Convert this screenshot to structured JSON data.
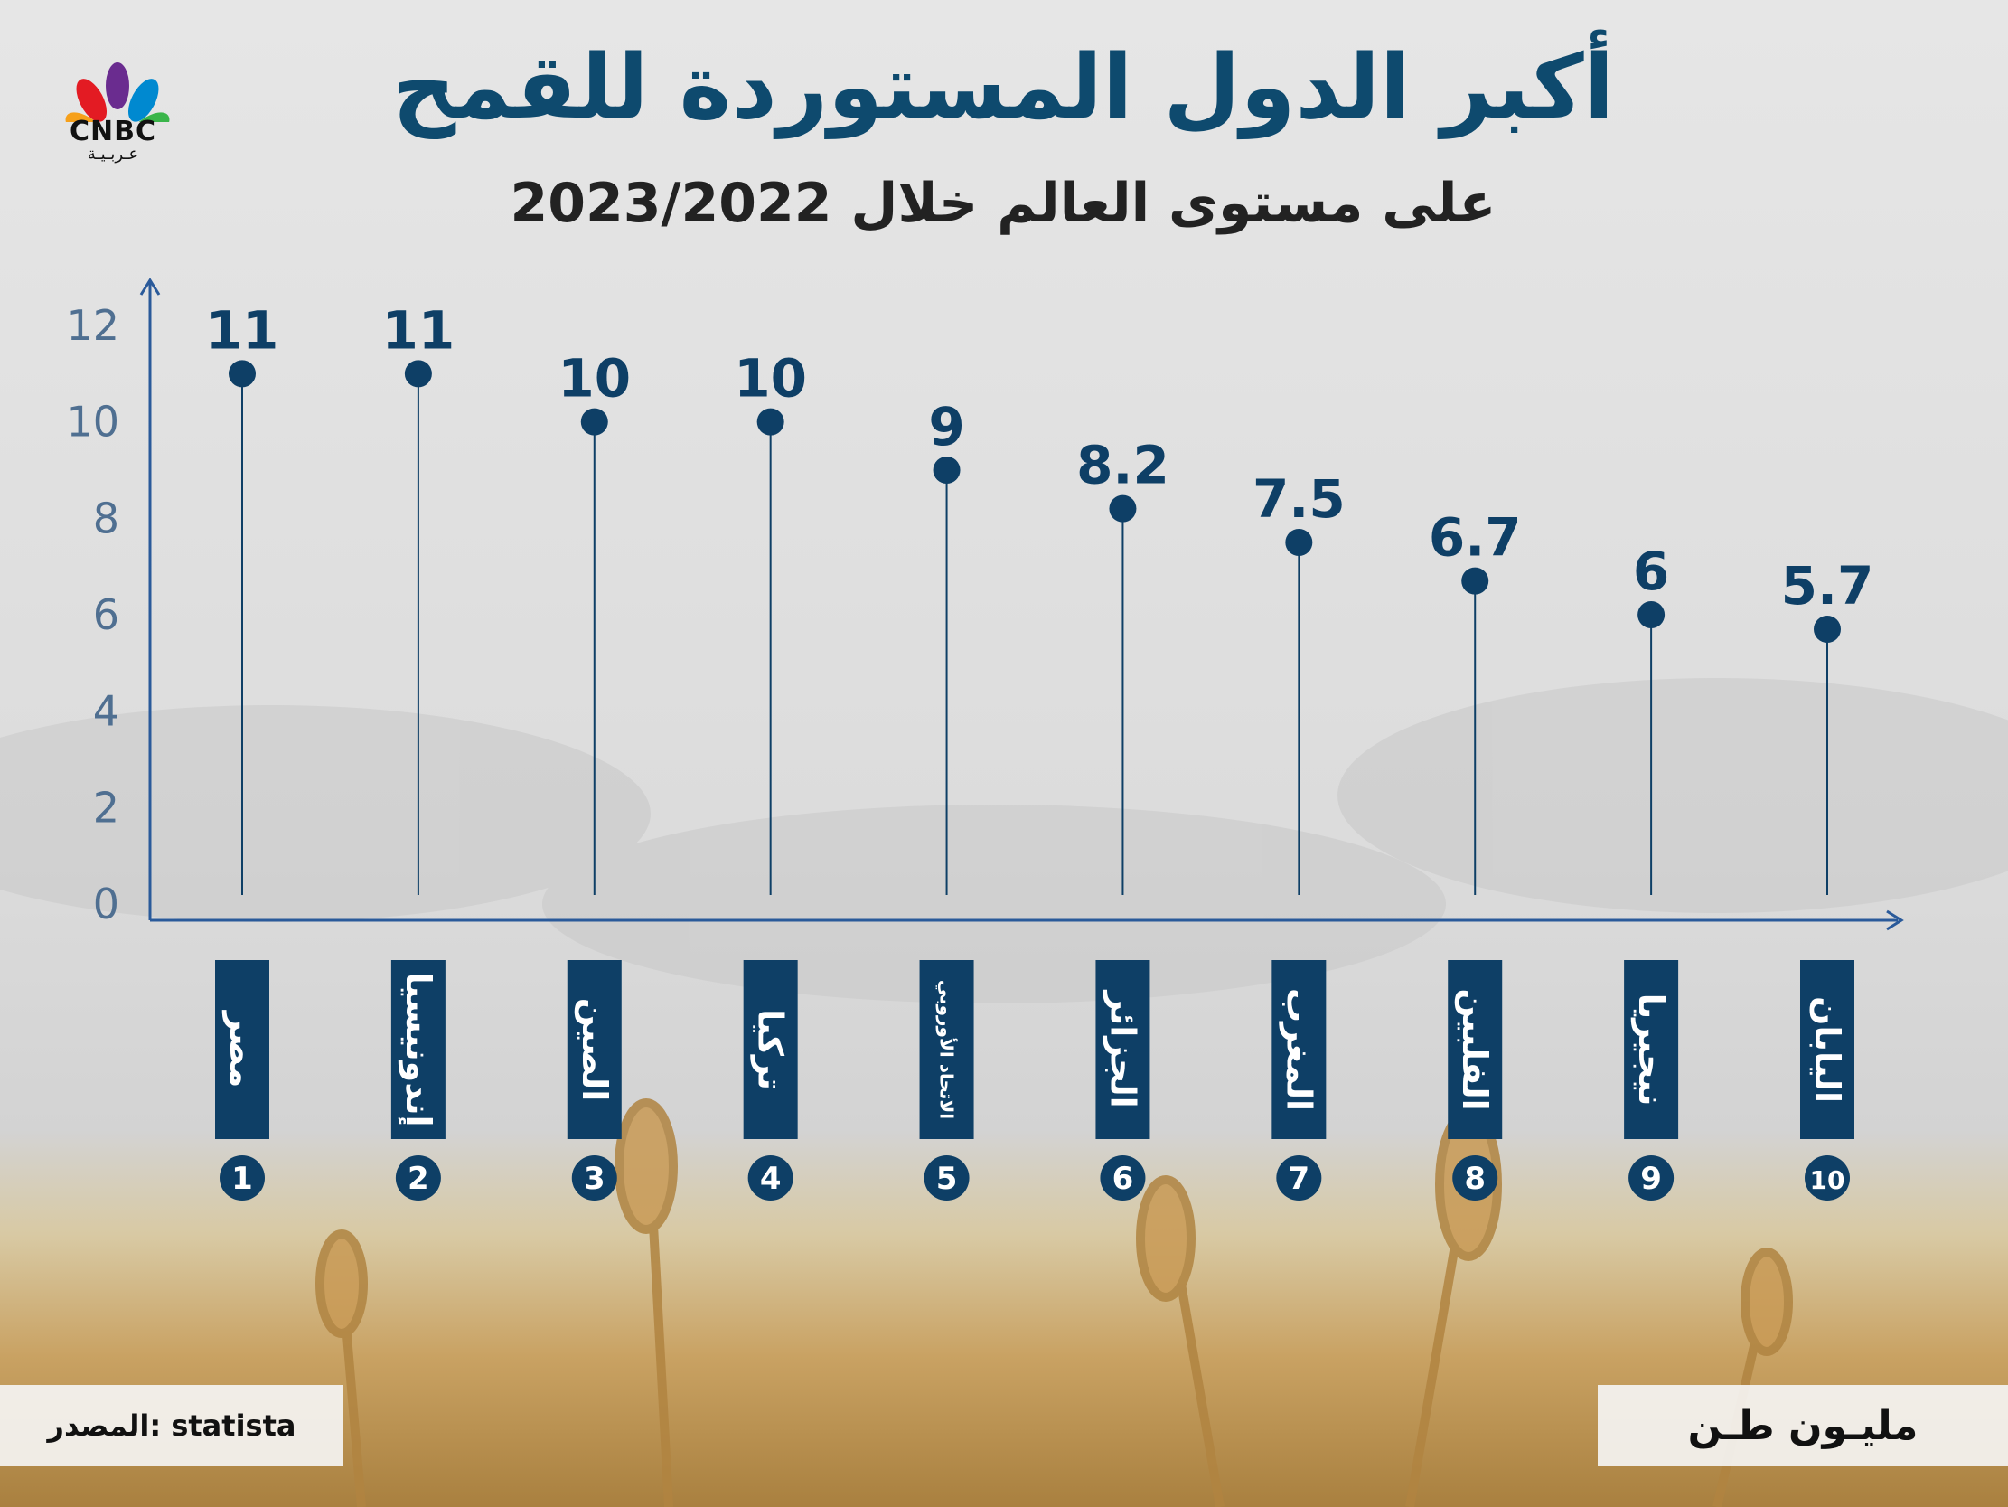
{
  "title": "أكبر الدول المستوردة للقمح",
  "subtitle": "على مستوى العالم خلال 2023/2022",
  "logo": {
    "text": "CNBC",
    "subtext": "عـربـيـة"
  },
  "source_label": "المصدر: statista",
  "unit_label": "مليـون طـن",
  "colors": {
    "primary": "#0e3f66",
    "title": "#0e4a6e",
    "axis": "#2a5a9a",
    "tick_text": "#4f6f91"
  },
  "chart_data": {
    "type": "lollipop",
    "categories": [
      "مصر",
      "إندونيسيا",
      "الصين",
      "تركيا",
      "الاتحاد الأوروبي",
      "الجزائر",
      "المغرب",
      "الفلبين",
      "نيجيريا",
      "اليابان"
    ],
    "ranks": [
      "1",
      "2",
      "3",
      "4",
      "5",
      "6",
      "7",
      "8",
      "9",
      "10"
    ],
    "values": [
      11,
      11,
      10,
      10,
      9,
      8.2,
      7.5,
      6.7,
      6,
      5.7
    ],
    "value_labels": [
      "11",
      "11",
      "10",
      "10",
      "9",
      "8.2",
      "7.5",
      "6.7",
      "6",
      "5.7"
    ],
    "y_ticks": [
      0,
      2,
      4,
      6,
      8,
      10,
      12
    ],
    "ylim": [
      0,
      12
    ],
    "ylabel": "مليون طن",
    "grid": false
  }
}
